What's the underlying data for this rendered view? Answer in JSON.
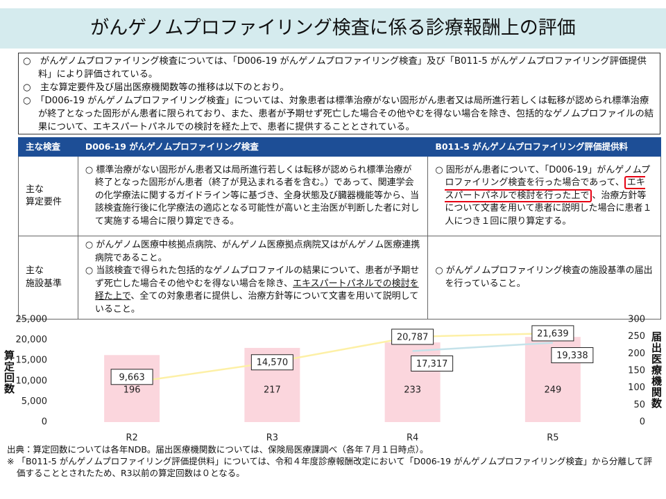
{
  "header": {
    "title": "がんゲノムプロファイリング検査に係る診療報酬上の評価"
  },
  "notes": [
    "○　がんゲノムプロファイリング検査については、「D006-19 がんゲノムプロファイリング検査」及び「B011-5 がんゲノムプロファイリング評価提供料」により評価されている。",
    "○　主な算定要件及び届出医療機関数等の推移は以下のとおり。",
    "○　「D006-19 がんゲノムプロファイリング検査」については、対象患者は標準治療がない固形がん患者又は局所進行若しくは転移が認められ標準治療が終了となった固形がん患者に限られており、また、患者が予期せず死亡した場合その他やむを得ない場合を除き、包括的なゲノムプロファイルの結果について、エキスパートパネルでの検討を経た上で、患者に提供することとされている。"
  ],
  "table": {
    "header": [
      "主な検査",
      "D006-19 がんゲノムプロファイリング検査",
      "B011-5 がんゲノムプロファイリング評価提供料"
    ],
    "rows": [
      {
        "label": "主な\n算定要件",
        "cells": [
          [
            [
              "○ 標準治療がない固形がん患者又は局所進行若しくは転移が認められ標準治療が終了となった固形がん患者（終了が見込まれる者を含む。）であって、関連学会の化学療法に関するガイドライン等に基づき、全身状態及び臓器機能等から、当該検査施行後に化学療法の適応となる可能性が高いと主治医が判断した者に対して実施する場合に限り算定できる。"
            ]
          ],
          [
            [
              "○ 固形がん患者について、「D006-19」がんゲノムプロファイリング検査を行った場合であって、",
              {
                "text": "エキスパートパネルで検討を行った上で",
                "mark": "box"
              },
              "、治療方針等について文書を用いて患者に説明した場合に患者１人につき１回に限り算定する。"
            ]
          ]
        ]
      },
      {
        "label": "主な\n施設基準",
        "cells": [
          [
            [
              "○ がんゲノム医療中核拠点病院、がんゲノム医療拠点病院又はがんゲノム医療連携病院であること。"
            ],
            [
              "○ 当該検査で得られた包括的なゲノムプロファイルの結果について、患者が予期せず死亡した場合その他やむを得ない場合を除き、",
              {
                "text": "エキスパートパネルでの検討を経た上で",
                "mark": "underline"
              },
              "、全ての対象患者に提供し、治療方針等について文書を用いて説明していること。"
            ]
          ],
          [
            [
              "○ がんゲノムプロファイリング検査の施設基準の届出を行っていること。"
            ]
          ]
        ]
      }
    ]
  },
  "chart_data": {
    "type": "bar",
    "categories": [
      "R2",
      "R3",
      "R4",
      "R5"
    ],
    "y_label": "算定回数",
    "y2_label": "届出医療機関数",
    "ylim": [
      0,
      25000
    ],
    "yticks": [
      0,
      {
        "value": 5000,
        "label": "5,000"
      },
      {
        "value": 10000,
        "label": "10,000"
      },
      {
        "value": 15000,
        "label": "15,000"
      },
      {
        "value": 20000,
        "label": "20,000"
      },
      {
        "value": 25000,
        "label": "25,000"
      }
    ],
    "y2lim": [
      0,
      300
    ],
    "y2ticks": [
      0,
      50,
      100,
      150,
      200,
      250,
      300
    ],
    "grid": false,
    "series": [
      {
        "type": "bar",
        "axis": "y2",
        "color": "#fbd6dd",
        "values": [
          196,
          217,
          233,
          249
        ]
      },
      {
        "type": "line",
        "color": "#fdf0a6",
        "values": [
          9663,
          14570,
          20787,
          21639
        ],
        "value_labels": [
          "9,663",
          "14,570",
          "20,787",
          "21,639"
        ]
      },
      {
        "type": "line",
        "color": "#c4e2ea",
        "values": [
          null,
          null,
          17317,
          19338
        ],
        "value_labels": [
          null,
          null,
          "17,317",
          "19,338"
        ]
      }
    ]
  },
  "footer": [
    "出典：算定回数については各年NDB。届出医療機関数については、保険局医療課調べ（各年７月１日時点）。",
    "※ 「B011-5 がんゲノムプロファイリング評価提供料」については、令和４年度診療報酬改定において「D006-19 がんゲノムプロファイリング検査」から分離して評価することとされたため、R3以前の算定回数は０となる。"
  ]
}
